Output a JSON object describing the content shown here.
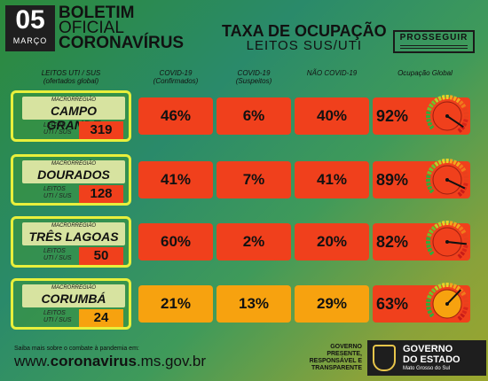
{
  "header": {
    "day": "05",
    "month": "MARÇO",
    "bulletin": [
      "BOLETIM",
      "OFICIAL",
      "CORONAVÍRUS"
    ],
    "title": "TAXA DE OCUPAÇÃO",
    "subtitle": "LEITOS SUS/UTI",
    "program": "PROSSEGUIR"
  },
  "columns": {
    "leitos": [
      "LEITOS UTI / SUS",
      "(ofertados global)"
    ],
    "covid": [
      "COVID-19",
      "(Confirmados)"
    ],
    "suspeitos": [
      "COVID-19",
      "(Suspeitos)"
    ],
    "nao_covid": "NÃO COVID-19",
    "global": "Ocupação Global"
  },
  "region_label_small": "MACRORREGIÃO",
  "leitos_label": [
    "LEITOS",
    "UTI / SUS"
  ],
  "regions": [
    {
      "name": "CAMPO GRANDE",
      "beds": "319",
      "covid": "46%",
      "suspeitos": "6%",
      "nao_covid": "40%",
      "global": "92%",
      "global_value": 0.92
    },
    {
      "name": "DOURADOS",
      "beds": "128",
      "covid": "41%",
      "suspeitos": "7%",
      "nao_covid": "41%",
      "global": "89%",
      "global_value": 0.89
    },
    {
      "name": "TRÊS LAGOAS",
      "beds": "50",
      "covid": "60%",
      "suspeitos": "2%",
      "nao_covid": "20%",
      "global": "82%",
      "global_value": 0.82
    },
    {
      "name": "CORUMBÁ",
      "beds": "24",
      "covid": "21%",
      "suspeitos": "13%",
      "nao_covid": "29%",
      "global": "63%",
      "global_value": 0.63
    }
  ],
  "footer": {
    "small": "Saiba mais sobre o combate à pandemia em:",
    "url_pre": "www.",
    "url_bold": "coronavirus",
    "url_post": ".ms.gov.br",
    "gov_lines": [
      "GOVERNO",
      "PRESENTE,",
      "RESPONSÁVEL E",
      "TRANSPARENTE"
    ],
    "logo_1": "GOVERNO",
    "logo_2": "DO ESTADO",
    "logo_3": "Mato Grosso do Sul"
  },
  "colors": {
    "red": "#f0401c",
    "orange": "#f7a20f",
    "yellow_border": "#e8ef3c"
  }
}
